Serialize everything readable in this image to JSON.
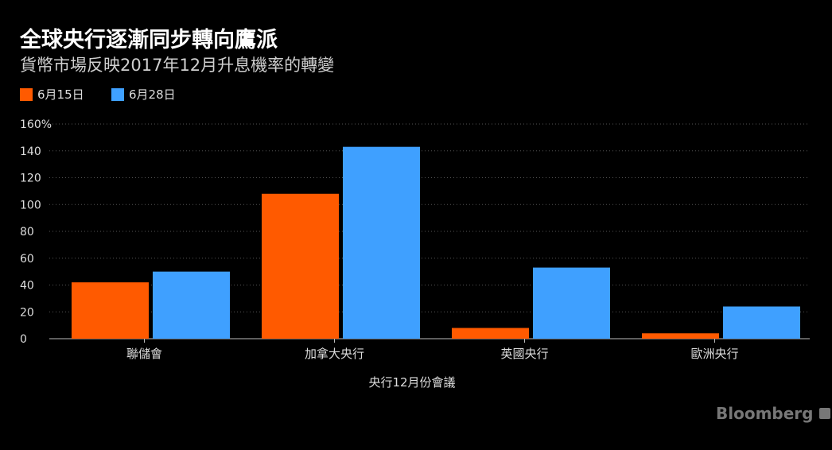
{
  "chart_data": {
    "type": "bar",
    "title": "全球央行逐漸同步轉向鷹派",
    "subtitle": "貨幣市場反映2017年12月升息機率的轉變",
    "categories": [
      "聯儲會",
      "加拿大央行",
      "英國央行",
      "歐洲央行"
    ],
    "series": [
      {
        "name": "6月15日",
        "color": "#ff5a00",
        "values": [
          42,
          108,
          8,
          4
        ]
      },
      {
        "name": "6月28日",
        "color": "#3fa0ff",
        "values": [
          50,
          143,
          53,
          24
        ]
      }
    ],
    "xlabel": "央行12月份會議",
    "ylabel": "",
    "ylim": [
      0,
      160
    ],
    "yticks": [
      "0",
      "20",
      "40",
      "60",
      "80",
      "100",
      "120",
      "140",
      "160%"
    ],
    "grid": true,
    "legend": "top-left"
  },
  "source": "Bloomberg"
}
